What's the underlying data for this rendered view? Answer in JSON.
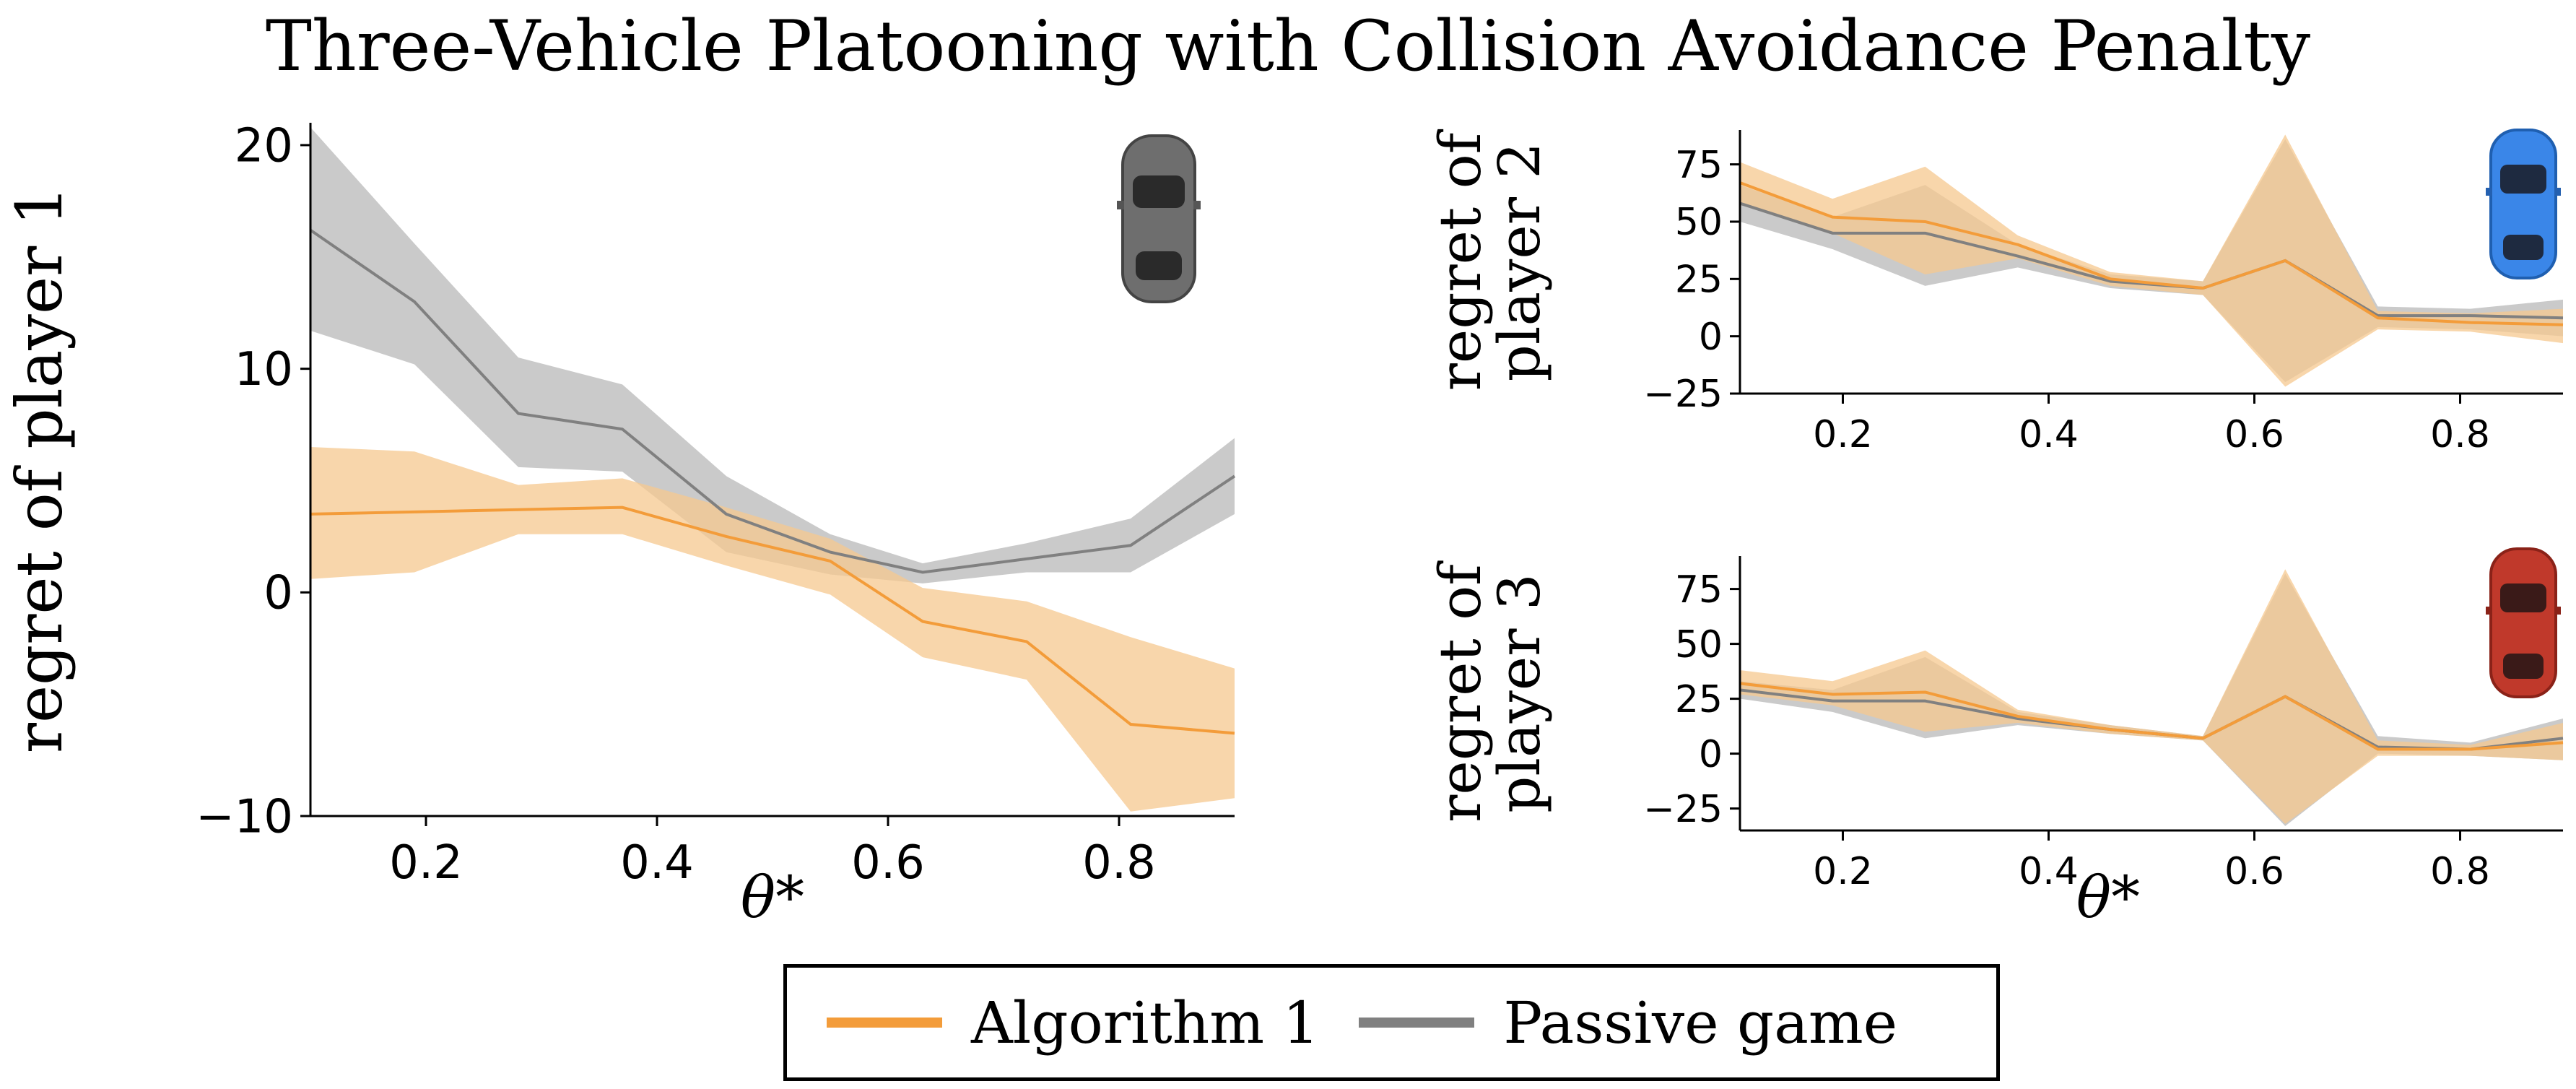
{
  "title": "Three-Vehicle Platooning with Collision Avoidance Penalty",
  "colors": {
    "algorithm": "#F39C3A",
    "algorithm_band": "#F5C88F",
    "passive": "#808080",
    "passive_band": "#C4C4C4"
  },
  "icons": {
    "player1": "gray-car-icon",
    "player2": "blue-car-icon",
    "player3": "red-car-icon"
  },
  "legend": {
    "algorithm_label": "Algorithm 1",
    "passive_label": "Passive game"
  },
  "chart_data": [
    {
      "type": "line",
      "ylabel": "regret of player 1",
      "xlabel": "θ*",
      "xlim": [
        0.1,
        0.9
      ],
      "ylim": [
        -10,
        21
      ],
      "xticks": [
        0.2,
        0.4,
        0.6,
        0.8
      ],
      "yticks": [
        -10,
        0,
        10,
        20
      ],
      "x": [
        0.1,
        0.19,
        0.28,
        0.37,
        0.46,
        0.55,
        0.63,
        0.72,
        0.81,
        0.9
      ],
      "series": [
        {
          "name": "Algorithm 1",
          "values": [
            3.5,
            3.6,
            3.7,
            3.8,
            2.5,
            1.4,
            -1.3,
            -2.2,
            -5.9,
            -6.3
          ],
          "lower": [
            0.6,
            0.9,
            2.6,
            2.6,
            1.2,
            -0.1,
            -2.9,
            -3.9,
            -9.8,
            -9.2
          ],
          "upper": [
            6.5,
            6.3,
            4.8,
            5.1,
            3.8,
            2.4,
            0.2,
            -0.4,
            -2.0,
            -3.4
          ]
        },
        {
          "name": "Passive game",
          "values": [
            16.2,
            13.0,
            8.0,
            7.3,
            3.5,
            1.8,
            0.9,
            1.5,
            2.1,
            5.2
          ],
          "lower": [
            11.7,
            10.2,
            5.6,
            5.4,
            1.8,
            0.8,
            0.4,
            0.9,
            0.9,
            3.5
          ],
          "upper": [
            20.8,
            15.6,
            10.5,
            9.3,
            5.2,
            2.6,
            1.3,
            2.2,
            3.3,
            6.9
          ]
        }
      ]
    },
    {
      "type": "line",
      "ylabel": "regret of player 2",
      "xlim": [
        0.1,
        0.9
      ],
      "ylim": [
        -25,
        90
      ],
      "xticks": [
        0.2,
        0.4,
        0.6,
        0.8
      ],
      "yticks": [
        -25,
        0,
        25,
        50,
        75
      ],
      "x": [
        0.1,
        0.19,
        0.28,
        0.37,
        0.46,
        0.55,
        0.63,
        0.72,
        0.81,
        0.9
      ],
      "series": [
        {
          "name": "Algorithm 1",
          "values": [
            67,
            52,
            50,
            40,
            25,
            21,
            33,
            8,
            6,
            5
          ],
          "lower": [
            58,
            45,
            27,
            34,
            22,
            18,
            -22,
            3,
            2,
            -3
          ],
          "upper": [
            76,
            60,
            74,
            44,
            28,
            24,
            88,
            11,
            10,
            12
          ]
        },
        {
          "name": "Passive game",
          "values": [
            58,
            45,
            45,
            35,
            24,
            21,
            33,
            9,
            9,
            8
          ],
          "lower": [
            50,
            38,
            22,
            30,
            21,
            18,
            -20,
            4,
            3,
            0
          ],
          "upper": [
            66,
            52,
            66,
            40,
            27,
            24,
            86,
            13,
            12,
            16
          ]
        }
      ]
    },
    {
      "type": "line",
      "ylabel": "regret of player 3",
      "xlabel": "θ*",
      "xlim": [
        0.1,
        0.9
      ],
      "ylim": [
        -35,
        90
      ],
      "xticks": [
        0.2,
        0.4,
        0.6,
        0.8
      ],
      "yticks": [
        -25,
        0,
        25,
        50,
        75
      ],
      "x": [
        0.1,
        0.19,
        0.28,
        0.37,
        0.46,
        0.55,
        0.63,
        0.72,
        0.81,
        0.9
      ],
      "series": [
        {
          "name": "Algorithm 1",
          "values": [
            32,
            27,
            28,
            17,
            11,
            7,
            26,
            2,
            2,
            5
          ],
          "lower": [
            27,
            22,
            10,
            14,
            9,
            6,
            -32,
            -1,
            -1,
            -3
          ],
          "upper": [
            38,
            33,
            47,
            20,
            13,
            8,
            84,
            6,
            4,
            14
          ]
        },
        {
          "name": "Passive game",
          "values": [
            29,
            24,
            24,
            16,
            11,
            7,
            26,
            3,
            2,
            7
          ],
          "lower": [
            25,
            19,
            7,
            13,
            9,
            6,
            -33,
            0,
            -1,
            -3
          ],
          "upper": [
            33,
            29,
            44,
            19,
            13,
            8,
            82,
            8,
            5,
            16
          ]
        }
      ]
    }
  ]
}
